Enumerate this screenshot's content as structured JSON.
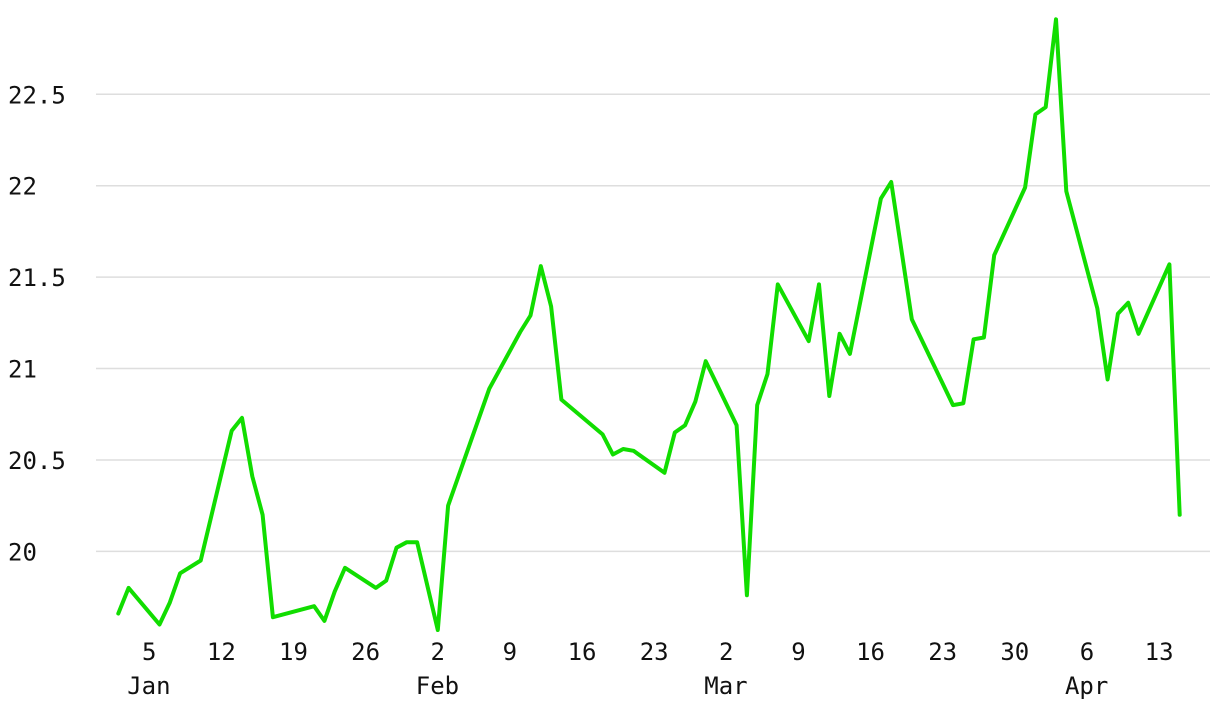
{
  "chart_data": {
    "type": "line",
    "title": "",
    "xlabel": "",
    "ylabel": "",
    "grid": true,
    "legend": "none",
    "line_color": "#11dd00",
    "xlim": [
      "2023-01-01",
      "2023-04-16"
    ],
    "ylim": [
      19.57,
      22.95
    ],
    "y_ticks": [
      "20",
      "20.5",
      "21",
      "21.5",
      "22",
      "22.5"
    ],
    "y_tick_values": [
      20,
      20.5,
      21,
      21.5,
      22,
      22.5
    ],
    "x_ticks": [
      {
        "date": "2023-01-05",
        "day": "5",
        "month": "Jan"
      },
      {
        "date": "2023-01-12",
        "day": "12",
        "month": ""
      },
      {
        "date": "2023-01-19",
        "day": "19",
        "month": ""
      },
      {
        "date": "2023-01-26",
        "day": "26",
        "month": ""
      },
      {
        "date": "2023-02-02",
        "day": "2",
        "month": "Feb"
      },
      {
        "date": "2023-02-09",
        "day": "9",
        "month": ""
      },
      {
        "date": "2023-02-16",
        "day": "16",
        "month": ""
      },
      {
        "date": "2023-02-23",
        "day": "23",
        "month": ""
      },
      {
        "date": "2023-03-02",
        "day": "2",
        "month": "Mar"
      },
      {
        "date": "2023-03-09",
        "day": "9",
        "month": ""
      },
      {
        "date": "2023-03-16",
        "day": "16",
        "month": ""
      },
      {
        "date": "2023-03-23",
        "day": "23",
        "month": ""
      },
      {
        "date": "2023-03-30",
        "day": "30",
        "month": ""
      },
      {
        "date": "2023-04-06",
        "day": "6",
        "month": "Apr"
      },
      {
        "date": "2023-04-13",
        "day": "13",
        "month": ""
      }
    ],
    "series": [
      {
        "x": [
          "2023-01-02",
          "2023-01-03",
          "2023-01-06",
          "2023-01-07",
          "2023-01-08",
          "2023-01-10",
          "2023-01-13",
          "2023-01-14",
          "2023-01-15",
          "2023-01-16",
          "2023-01-17",
          "2023-01-21",
          "2023-01-22",
          "2023-01-23",
          "2023-01-24",
          "2023-01-27",
          "2023-01-28",
          "2023-01-29",
          "2023-01-30",
          "2023-01-31",
          "2023-02-02",
          "2023-02-03",
          "2023-02-04",
          "2023-02-07",
          "2023-02-10",
          "2023-02-11",
          "2023-02-12",
          "2023-02-13",
          "2023-02-14",
          "2023-02-18",
          "2023-02-19",
          "2023-02-20",
          "2023-02-21",
          "2023-02-24",
          "2023-02-25",
          "2023-02-26",
          "2023-02-27",
          "2023-02-28",
          "2023-03-03",
          "2023-03-04",
          "2023-03-05",
          "2023-03-06",
          "2023-03-07",
          "2023-03-10",
          "2023-03-11",
          "2023-03-12",
          "2023-03-13",
          "2023-03-14",
          "2023-03-17",
          "2023-03-18",
          "2023-03-20",
          "2023-03-24",
          "2023-03-25",
          "2023-03-26",
          "2023-03-27",
          "2023-03-28",
          "2023-03-31",
          "2023-04-01",
          "2023-04-02",
          "2023-04-03",
          "2023-04-04",
          "2023-04-07",
          "2023-04-08",
          "2023-04-09",
          "2023-04-10",
          "2023-04-11",
          "2023-04-14",
          "2023-04-15"
        ],
        "y": [
          19.66,
          19.8,
          19.6,
          19.72,
          19.88,
          19.95,
          20.66,
          20.73,
          20.41,
          20.2,
          19.64,
          19.7,
          19.62,
          19.78,
          19.91,
          19.8,
          19.84,
          20.02,
          20.05,
          20.05,
          19.57,
          20.25,
          20.41,
          20.89,
          21.2,
          21.29,
          21.56,
          21.34,
          20.83,
          20.64,
          20.53,
          20.56,
          20.55,
          20.43,
          20.65,
          20.69,
          20.82,
          21.04,
          20.69,
          19.76,
          20.8,
          20.97,
          21.46,
          21.15,
          21.46,
          20.85,
          21.19,
          21.08,
          21.93,
          22.02,
          21.27,
          20.8,
          20.81,
          21.16,
          21.17,
          21.62,
          21.99,
          22.39,
          22.43,
          22.91,
          21.97,
          21.33,
          20.94,
          21.3,
          21.36,
          21.19,
          21.57,
          20.2
        ]
      }
    ]
  }
}
